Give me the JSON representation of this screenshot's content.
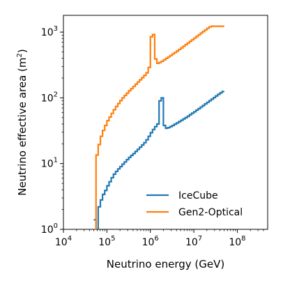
{
  "chart_data": {
    "type": "line",
    "step": true,
    "xscale": "log",
    "yscale": "log",
    "xlim": [
      10000,
      500000000
    ],
    "ylim": [
      1,
      1800
    ],
    "xlabel": "Neutrino energy (GeV)",
    "ylabel_main": "Neutrino effective area (m",
    "ylabel_sup": "2",
    "ylabel_end": ")",
    "xticks": [
      {
        "base": "10",
        "exp": "4",
        "value": 10000
      },
      {
        "base": "10",
        "exp": "5",
        "value": 100000
      },
      {
        "base": "10",
        "exp": "6",
        "value": 1000000
      },
      {
        "base": "10",
        "exp": "7",
        "value": 10000000
      },
      {
        "base": "10",
        "exp": "8",
        "value": 100000000
      }
    ],
    "yticks": [
      {
        "base": "10",
        "exp": "0",
        "value": 1
      },
      {
        "base": "10",
        "exp": "1",
        "value": 10
      },
      {
        "base": "10",
        "exp": "2",
        "value": 100
      },
      {
        "base": "10",
        "exp": "3",
        "value": 1000
      }
    ],
    "legend_position": "lower-right",
    "bin_edges": [
      50000,
      56234,
      63096,
      70795,
      79433,
      89125,
      100000,
      112202,
      125893,
      141254,
      158489,
      177828,
      199526,
      223872,
      251189,
      281838,
      316228,
      354813,
      398107,
      446684,
      501187,
      562341,
      630957,
      707946,
      794328,
      891251,
      1000000,
      1122018,
      1258925,
      1412538,
      1584893,
      1778279,
      1995262,
      2238721,
      2511886,
      2818383,
      3162278,
      3548134,
      3981072,
      4466836,
      5011872,
      5623413,
      6309573,
      7079458,
      7943282,
      8912509,
      10000000,
      11220185,
      12589254,
      14125375,
      15848932,
      17782794,
      19952623,
      22387211,
      25118864,
      28183829,
      31622777,
      35481339,
      39810717,
      44668359,
      50118723,
      56234133,
      63095734,
      70794578,
      79432823,
      89125094,
      100000000,
      112201845,
      125892541,
      141253754,
      158489319,
      177827941,
      199526231,
      223872114,
      251188643,
      281838293,
      316227766,
      354813389,
      398107171,
      446683592,
      501187234
    ],
    "series": [
      {
        "name": "IceCube",
        "color": "#1f77b4",
        "values": [
          1.4,
          1.0,
          2.2,
          2.8,
          3.4,
          3.9,
          4.6,
          5.3,
          6.1,
          6.9,
          7.6,
          8.3,
          9.0,
          9.8,
          10.6,
          11.5,
          12.4,
          13.3,
          14.2,
          15.3,
          16.5,
          17.8,
          19.2,
          20.8,
          23.0,
          26.0,
          29.5,
          33.0,
          36.5,
          40.0,
          90.0,
          100.0,
          38.0,
          34.5,
          35.2,
          36.5,
          38.0,
          39.8,
          41.5,
          43.5,
          45.5,
          47.8,
          50.0,
          52.5,
          55.5,
          58.5,
          61.5,
          65.0,
          68.5,
          72.5,
          76.5,
          81.0,
          85.5,
          90.5,
          95.5,
          101.0,
          107.0,
          113.0,
          119.0,
          125.0
        ]
      },
      {
        "name": "Gen2-Optical",
        "color": "#ff7f0e",
        "values": [
          1.0,
          13.5,
          19.5,
          26.0,
          32.0,
          38.0,
          45.0,
          51.0,
          58.0,
          66.0,
          74.0,
          82.0,
          91.0,
          100.0,
          109.0,
          118.0,
          128.0,
          138.0,
          149.0,
          161.0,
          174.0,
          188.0,
          203.0,
          220.0,
          240.0,
          290.0,
          850.0,
          920.0,
          390.0,
          335.0,
          345.0,
          360.0,
          378.0,
          397.0,
          418.0,
          440.0,
          465.0,
          490.0,
          515.0,
          545.0,
          575.0,
          610.0,
          645.0,
          683.0,
          723.0,
          765.0,
          810.0,
          858.0,
          910.0,
          965.0,
          1020.0,
          1080.0,
          1140.0,
          1200.0,
          1230.0,
          1230.0,
          1230.0,
          1230.0,
          1230.0,
          1230.0
        ]
      }
    ]
  }
}
